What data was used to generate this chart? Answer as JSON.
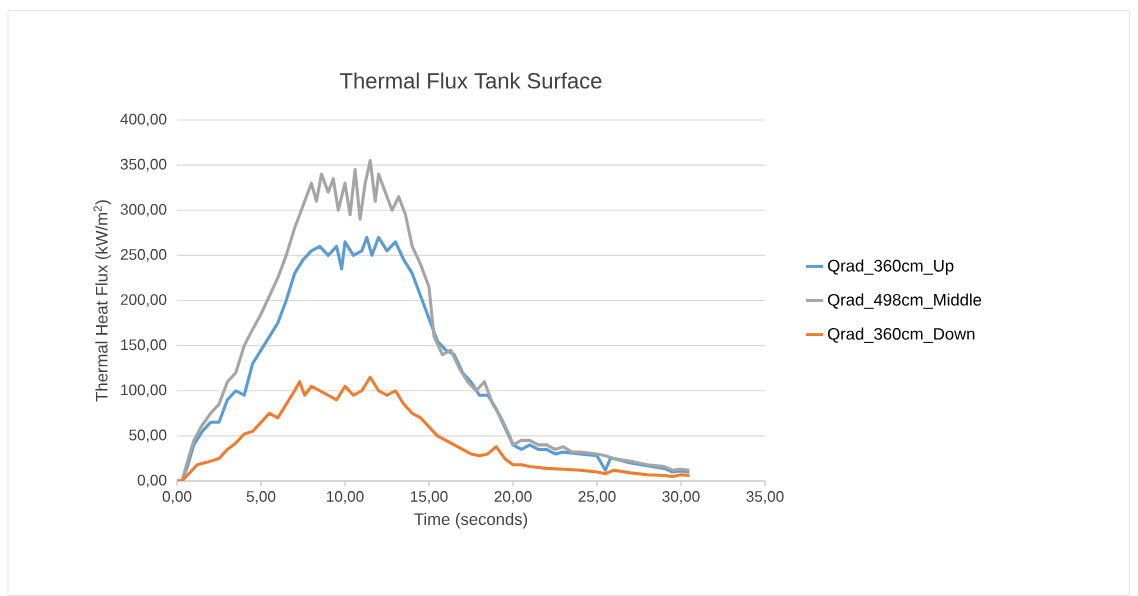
{
  "chart_data": {
    "type": "line",
    "title": "Thermal Flux Tank Surface",
    "xlabel": "Time (seconds)",
    "ylabel": "Thermal Heat Flux (kW/m$^{2}$)",
    "xlim": [
      0,
      35
    ],
    "ylim": [
      0,
      400
    ],
    "xticks": [
      {
        "value": 0,
        "label": "0,00"
      },
      {
        "value": 5,
        "label": "5,00"
      },
      {
        "value": 10,
        "label": "10,00"
      },
      {
        "value": 15,
        "label": "15,00"
      },
      {
        "value": 20,
        "label": "20,00"
      },
      {
        "value": 25,
        "label": "25,00"
      },
      {
        "value": 30,
        "label": "30,00"
      },
      {
        "value": 35,
        "label": "35,00"
      }
    ],
    "yticks": [
      {
        "value": 0,
        "label": "0,00"
      },
      {
        "value": 50,
        "label": "50,00"
      },
      {
        "value": 100,
        "label": "100,00"
      },
      {
        "value": 150,
        "label": "150,00"
      },
      {
        "value": 200,
        "label": "200,00"
      },
      {
        "value": 250,
        "label": "250,00"
      },
      {
        "value": 300,
        "label": "300,00"
      },
      {
        "value": 350,
        "label": "350,00"
      },
      {
        "value": 400,
        "label": "400,00"
      }
    ],
    "grid": "y",
    "legend": "right",
    "marker": "none",
    "line_style": "solid",
    "series": [
      {
        "name": "Qrad_360cm_Up",
        "color": "#5b9bd5",
        "x": [
          0,
          0.3,
          0.6,
          1,
          1.5,
          2,
          2.5,
          3,
          3.5,
          4,
          4.5,
          5,
          5.5,
          6,
          6.5,
          7,
          7.5,
          8,
          8.5,
          9,
          9.5,
          9.8,
          10,
          10.5,
          11,
          11.3,
          11.6,
          12,
          12.5,
          13,
          13.5,
          14,
          14.5,
          15,
          15.5,
          16,
          16.5,
          17,
          17.5,
          18,
          18.5,
          19,
          19.5,
          20,
          20.5,
          21,
          21.5,
          22,
          22.5,
          23,
          24,
          25,
          25.5,
          25.8,
          26,
          27,
          28,
          29,
          29.5,
          30,
          30.5
        ],
        "values": [
          0,
          0,
          15,
          40,
          55,
          65,
          65,
          90,
          100,
          95,
          130,
          145,
          160,
          175,
          200,
          230,
          245,
          255,
          260,
          250,
          260,
          235,
          265,
          250,
          255,
          270,
          250,
          270,
          255,
          265,
          245,
          230,
          205,
          180,
          155,
          145,
          140,
          120,
          110,
          95,
          95,
          80,
          60,
          40,
          35,
          40,
          35,
          35,
          30,
          32,
          30,
          28,
          12,
          25,
          25,
          20,
          17,
          14,
          10,
          11,
          10
        ]
      },
      {
        "name": "Qrad_498cm_Middle",
        "color": "#a5a5a5",
        "x": [
          0,
          0.3,
          0.6,
          1,
          1.5,
          2,
          2.5,
          3,
          3.5,
          4,
          4.5,
          5,
          5.5,
          6,
          6.5,
          7,
          7.5,
          8,
          8.3,
          8.6,
          9,
          9.3,
          9.6,
          10,
          10.3,
          10.6,
          10.9,
          11.2,
          11.5,
          11.8,
          12,
          12.4,
          12.8,
          13.2,
          13.6,
          14,
          14.5,
          15,
          15.3,
          15.8,
          16.3,
          16.8,
          17.3,
          17.8,
          18.3,
          18.8,
          19.3,
          19.8,
          20,
          20.5,
          21,
          21.5,
          22,
          22.5,
          23,
          23.5,
          24,
          25,
          25.5,
          26,
          27,
          28,
          29,
          29.5,
          30,
          30.5
        ],
        "values": [
          0,
          0,
          20,
          45,
          62,
          75,
          85,
          110,
          120,
          150,
          168,
          185,
          205,
          225,
          250,
          280,
          305,
          330,
          310,
          340,
          320,
          335,
          300,
          330,
          295,
          345,
          290,
          330,
          355,
          310,
          340,
          320,
          300,
          315,
          295,
          260,
          240,
          215,
          160,
          140,
          145,
          125,
          110,
          100,
          110,
          85,
          70,
          50,
          40,
          45,
          45,
          40,
          40,
          35,
          38,
          32,
          32,
          30,
          28,
          25,
          22,
          18,
          16,
          12,
          13,
          12
        ]
      },
      {
        "name": "Qrad_360cm_Down",
        "color": "#ed7d31",
        "x": [
          0,
          0.3,
          0.8,
          1.2,
          2,
          2.5,
          3,
          3.5,
          4,
          4.5,
          5,
          5.5,
          6,
          6.5,
          7,
          7.3,
          7.6,
          8,
          8.5,
          9,
          9.5,
          10,
          10.5,
          11,
          11.5,
          12,
          12.5,
          13,
          13.5,
          14,
          14.5,
          15,
          15.5,
          16,
          16.5,
          17,
          17.5,
          18,
          18.5,
          19,
          19.5,
          20,
          20.5,
          21,
          22,
          23,
          24,
          25,
          25.5,
          26,
          27,
          28,
          29,
          29.5,
          30,
          30.5
        ],
        "values": [
          0,
          0,
          10,
          18,
          22,
          25,
          35,
          42,
          52,
          55,
          65,
          75,
          70,
          85,
          100,
          110,
          95,
          105,
          100,
          95,
          90,
          105,
          95,
          100,
          115,
          100,
          95,
          100,
          85,
          75,
          70,
          60,
          50,
          45,
          40,
          35,
          30,
          28,
          30,
          38,
          25,
          18,
          18,
          16,
          14,
          13,
          12,
          10,
          8,
          12,
          9,
          7,
          6,
          5,
          7,
          6
        ]
      }
    ]
  }
}
